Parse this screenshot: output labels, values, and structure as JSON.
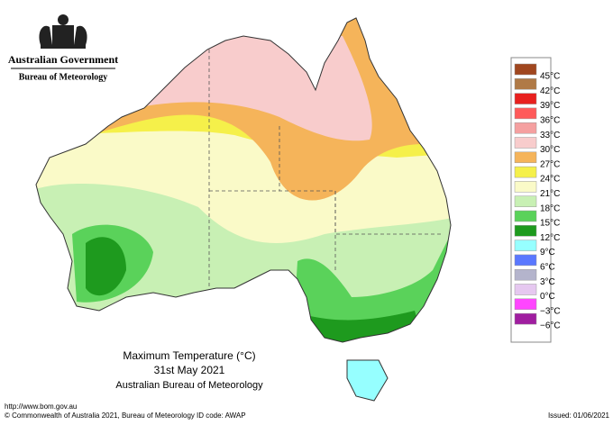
{
  "header": {
    "government": "Australian Government",
    "agency": "Bureau of Meteorology"
  },
  "legend": {
    "items": [
      {
        "label": "45°C",
        "color": "#a0461e"
      },
      {
        "label": "42°C",
        "color": "#b07a46"
      },
      {
        "label": "39°C",
        "color": "#e8201e"
      },
      {
        "label": "36°C",
        "color": "#ff5a5a"
      },
      {
        "label": "33°C",
        "color": "#f5a0a0"
      },
      {
        "label": "30°C",
        "color": "#f8cccc"
      },
      {
        "label": "27°C",
        "color": "#f5b45a"
      },
      {
        "label": "24°C",
        "color": "#f5f04a"
      },
      {
        "label": "21°C",
        "color": "#fafac8"
      },
      {
        "label": "18°C",
        "color": "#c8f0b4"
      },
      {
        "label": "15°C",
        "color": "#5ad25a"
      },
      {
        "label": "12°C",
        "color": "#1e9a1e"
      },
      {
        "label": "9°C",
        "color": "#96ffff"
      },
      {
        "label": "6°C",
        "color": "#5a78ff"
      },
      {
        "label": "3°C",
        "color": "#b4b4cc"
      },
      {
        "label": "0°C",
        "color": "#e6c8f0"
      },
      {
        "label": "−3°C",
        "color": "#ff46ff"
      },
      {
        "label": "−6°C",
        "color": "#a01ea0"
      }
    ]
  },
  "caption": {
    "title": "Maximum Temperature (°C)",
    "date": "31st May 2021",
    "source": "Australian Bureau of Meteorology"
  },
  "footer": {
    "url": "http://www.bom.gov.au",
    "copyright": "© Commonwealth of Australia 2021, Bureau of Meteorology",
    "id_code": "ID code: AWAP",
    "issued": "Issued: 01/06/2021"
  }
}
